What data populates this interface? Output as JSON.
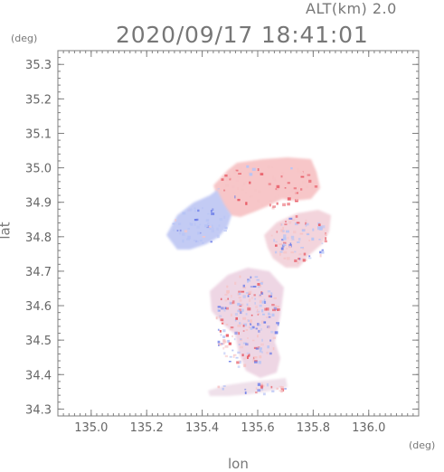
{
  "header": {
    "altitude_label": "ALT(km) 2.0",
    "timestamp": "2020/09/17 18:41:01"
  },
  "axes": {
    "y_unit": "(deg)",
    "x_unit": "(deg)",
    "y_label": "lat",
    "x_label": "lon",
    "x_ticks": [
      "135.0",
      "135.2",
      "135.4",
      "135.6",
      "135.8",
      "136.0"
    ],
    "y_ticks": [
      "34.3",
      "34.4",
      "34.5",
      "34.6",
      "34.7",
      "34.8",
      "34.9",
      "35.0",
      "35.1",
      "35.2",
      "35.3"
    ]
  },
  "colors": {
    "frame": "#7f7f7f",
    "approach": "#b8c4f5",
    "recede": "#f6c4c6",
    "approach_strong": "#6f7fe8",
    "recede_strong": "#e8606a"
  },
  "map": {
    "x_range": [
      134.88,
      136.18
    ],
    "y_range": [
      34.28,
      35.34
    ]
  }
}
